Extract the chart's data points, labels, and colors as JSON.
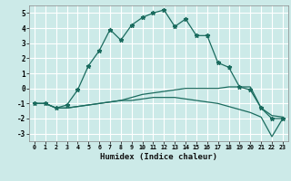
{
  "xlabel": "Humidex (Indice chaleur)",
  "bg_color": "#cceae8",
  "grid_color": "#ffffff",
  "line_color": "#1a6b5e",
  "xlim": [
    -0.5,
    23.5
  ],
  "ylim": [
    -3.5,
    5.5
  ],
  "xticks": [
    0,
    1,
    2,
    3,
    4,
    5,
    6,
    7,
    8,
    9,
    10,
    11,
    12,
    13,
    14,
    15,
    16,
    17,
    18,
    19,
    20,
    21,
    22,
    23
  ],
  "yticks": [
    -3,
    -2,
    -1,
    0,
    1,
    2,
    3,
    4,
    5
  ],
  "series1_x": [
    0,
    1,
    2,
    3,
    4,
    5,
    6,
    7,
    8,
    9,
    10,
    11,
    12,
    13,
    14,
    15,
    16,
    17,
    18,
    19,
    20,
    21,
    22,
    23
  ],
  "series1_y": [
    -1.0,
    -1.0,
    -1.3,
    -1.1,
    -0.1,
    1.5,
    2.5,
    3.9,
    3.2,
    4.2,
    4.7,
    5.0,
    5.2,
    4.1,
    4.6,
    3.5,
    3.5,
    1.7,
    1.4,
    0.1,
    -0.1,
    -1.3,
    -2.0,
    -2.0
  ],
  "series2_x": [
    0,
    1,
    2,
    3,
    4,
    5,
    6,
    7,
    8,
    9,
    10,
    11,
    12,
    13,
    14,
    15,
    16,
    17,
    18,
    19,
    20,
    21,
    22,
    23
  ],
  "series2_y": [
    -1.0,
    -1.0,
    -1.3,
    -1.3,
    -1.2,
    -1.1,
    -1.0,
    -0.9,
    -0.8,
    -0.6,
    -0.4,
    -0.3,
    -0.2,
    -0.1,
    0.0,
    0.0,
    0.0,
    0.0,
    0.1,
    0.1,
    0.1,
    -1.3,
    -1.8,
    -1.9
  ],
  "series3_x": [
    0,
    1,
    2,
    3,
    4,
    5,
    6,
    7,
    8,
    9,
    10,
    11,
    12,
    13,
    14,
    15,
    16,
    17,
    18,
    19,
    20,
    21,
    22,
    23
  ],
  "series3_y": [
    -1.0,
    -1.0,
    -1.3,
    -1.3,
    -1.2,
    -1.1,
    -1.0,
    -0.9,
    -0.8,
    -0.8,
    -0.7,
    -0.6,
    -0.6,
    -0.6,
    -0.7,
    -0.8,
    -0.9,
    -1.0,
    -1.2,
    -1.4,
    -1.6,
    -1.9,
    -3.2,
    -2.0
  ]
}
